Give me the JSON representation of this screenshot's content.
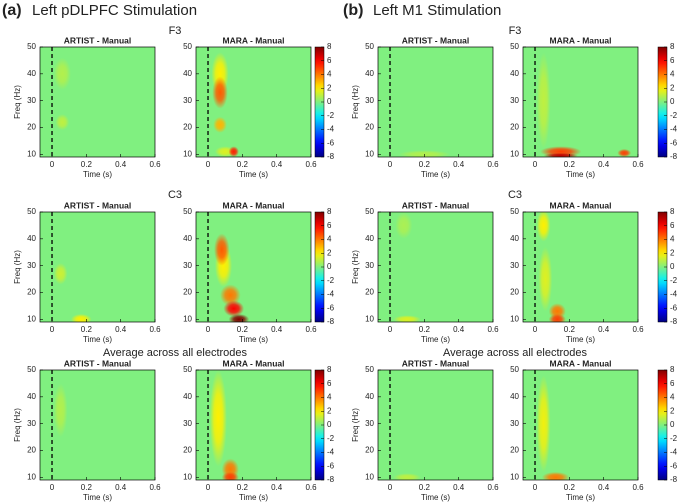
{
  "figure": {
    "panels": [
      {
        "label": "(a)",
        "title": "Left pDLPFC Stimulation",
        "rows": [
          "F3",
          "C3",
          "Average across all electrodes"
        ]
      },
      {
        "label": "(b)",
        "title": "Left M1 Stimulation",
        "rows": [
          "F3",
          "C3",
          "Average across all electrodes"
        ]
      }
    ]
  },
  "chart_data": [
    {
      "type": "heatmap",
      "title": "ARTIST - Manual",
      "xlabel": "Time (s)",
      "ylabel": "Freq (Hz)",
      "xlim": [
        -0.07,
        0.6
      ],
      "xticks": [
        0,
        0.2,
        0.4,
        0.6
      ],
      "ylim": [
        9,
        50
      ],
      "yticks": [
        10,
        20,
        30,
        40,
        50
      ],
      "clim": [
        -8,
        8
      ],
      "colormap": "jet",
      "spots": [
        {
          "t": 0.06,
          "f": 40,
          "dt": 0.05,
          "df": 6,
          "value": 0.8
        },
        {
          "t": 0.06,
          "f": 22,
          "dt": 0.04,
          "df": 3,
          "value": 1
        }
      ]
    },
    {
      "type": "heatmap",
      "title": "MARA - Manual",
      "xlabel": "Time (s)",
      "xlim": [
        -0.07,
        0.6
      ],
      "xticks": [
        0,
        0.2,
        0.4,
        0.6
      ],
      "ylim": [
        9,
        50
      ],
      "yticks": [
        10,
        20,
        30,
        40,
        50
      ],
      "clim": [
        -8,
        8
      ],
      "cticks": [
        8,
        6,
        4,
        2,
        0,
        -2,
        -4,
        -6,
        -8
      ],
      "colormap": "jet",
      "spots": [
        {
          "t": 0.07,
          "f": 40,
          "dt": 0.05,
          "df": 8,
          "value": 2
        },
        {
          "t": 0.07,
          "f": 33,
          "dt": 0.045,
          "df": 6,
          "value": 4.5
        },
        {
          "t": 0.07,
          "f": 21,
          "dt": 0.04,
          "df": 3,
          "value": 3
        },
        {
          "t": 0.1,
          "f": 11,
          "dt": 0.06,
          "df": 2,
          "value": 1.5
        },
        {
          "t": 0.15,
          "f": 11,
          "dt": 0.03,
          "df": 2,
          "value": 5.5
        }
      ]
    },
    {
      "type": "heatmap",
      "title": "ARTIST - Manual",
      "xlabel": "Time (s)",
      "ylabel": "Freq (Hz)",
      "xlim": [
        -0.07,
        0.6
      ],
      "xticks": [
        0,
        0.2,
        0.4,
        0.6
      ],
      "ylim": [
        9,
        50
      ],
      "yticks": [
        10,
        20,
        30,
        40,
        50
      ],
      "clim": [
        -8,
        8
      ],
      "colormap": "jet",
      "spots": [
        {
          "t": 0.05,
          "f": 27,
          "dt": 0.04,
          "df": 4,
          "value": 1.2
        },
        {
          "t": 0.17,
          "f": 10,
          "dt": 0.06,
          "df": 2,
          "value": 2
        }
      ]
    },
    {
      "type": "heatmap",
      "title": "MARA - Manual",
      "xlabel": "Time (s)",
      "xlim": [
        -0.07,
        0.6
      ],
      "xticks": [
        0,
        0.2,
        0.4,
        0.6
      ],
      "ylim": [
        9,
        50
      ],
      "yticks": [
        10,
        20,
        30,
        40,
        50
      ],
      "clim": [
        -8,
        8
      ],
      "cticks": [
        8,
        6,
        4,
        2,
        0,
        -2,
        -4,
        -6,
        -8
      ],
      "colormap": "jet",
      "spots": [
        {
          "t": 0.09,
          "f": 30,
          "dt": 0.05,
          "df": 8,
          "value": 2
        },
        {
          "t": 0.08,
          "f": 36,
          "dt": 0.045,
          "df": 6,
          "value": 4.5
        },
        {
          "t": 0.13,
          "f": 19,
          "dt": 0.06,
          "df": 4,
          "value": 4
        },
        {
          "t": 0.15,
          "f": 14,
          "dt": 0.06,
          "df": 3,
          "value": 6
        },
        {
          "t": 0.18,
          "f": 10,
          "dt": 0.06,
          "df": 2,
          "value": 8
        }
      ]
    },
    {
      "type": "heatmap",
      "title": "ARTIST - Manual",
      "xlabel": "Time (s)",
      "ylabel": "Freq (Hz)",
      "xlim": [
        -0.07,
        0.6
      ],
      "xticks": [
        0,
        0.2,
        0.4,
        0.6
      ],
      "ylim": [
        9,
        50
      ],
      "yticks": [
        10,
        20,
        30,
        40,
        50
      ],
      "clim": [
        -8,
        8
      ],
      "colormap": "jet",
      "spots": [
        {
          "t": 0.05,
          "f": 35,
          "dt": 0.04,
          "df": 10,
          "value": 0.8
        }
      ]
    },
    {
      "type": "heatmap",
      "title": "MARA - Manual",
      "xlabel": "Time (s)",
      "xlim": [
        -0.07,
        0.6
      ],
      "xticks": [
        0,
        0.2,
        0.4,
        0.6
      ],
      "ylim": [
        9,
        50
      ],
      "yticks": [
        10,
        20,
        30,
        40,
        50
      ],
      "clim": [
        -8,
        8
      ],
      "cticks": [
        8,
        6,
        4,
        2,
        0,
        -2,
        -4,
        -6,
        -8
      ],
      "colormap": "jet",
      "spots": [
        {
          "t": 0.06,
          "f": 32,
          "dt": 0.05,
          "df": 18,
          "value": 2
        },
        {
          "t": 0.13,
          "f": 13,
          "dt": 0.05,
          "df": 4,
          "value": 4
        },
        {
          "t": 0.13,
          "f": 10,
          "dt": 0.05,
          "df": 2,
          "value": 5
        }
      ]
    },
    {
      "type": "heatmap",
      "title": "ARTIST - Manual",
      "xlabel": "Time (s)",
      "ylabel": "Freq (Hz)",
      "xlim": [
        -0.07,
        0.6
      ],
      "xticks": [
        0,
        0.2,
        0.4,
        0.6
      ],
      "ylim": [
        9,
        50
      ],
      "yticks": [
        10,
        20,
        30,
        40,
        50
      ],
      "clim": [
        -8,
        8
      ],
      "colormap": "jet",
      "spots": [
        {
          "t": 0.2,
          "f": 10,
          "dt": 0.15,
          "df": 1.5,
          "value": 0.8
        }
      ]
    },
    {
      "type": "heatmap",
      "title": "MARA - Manual",
      "xlabel": "Time (s)",
      "xlim": [
        -0.07,
        0.6
      ],
      "xticks": [
        0,
        0.2,
        0.4,
        0.6
      ],
      "ylim": [
        9,
        50
      ],
      "yticks": [
        10,
        20,
        30,
        40,
        50
      ],
      "clim": [
        -8,
        8
      ],
      "cticks": [
        8,
        6,
        4,
        2,
        0,
        -2,
        -4,
        -6,
        -8
      ],
      "colormap": "jet",
      "spots": [
        {
          "t": 0.05,
          "f": 30,
          "dt": 0.04,
          "df": 18,
          "value": 1
        },
        {
          "t": 0.15,
          "f": 11,
          "dt": 0.12,
          "df": 2,
          "value": 5
        },
        {
          "t": 0.15,
          "f": 9.5,
          "dt": 0.1,
          "df": 1,
          "value": 7
        },
        {
          "t": 0.52,
          "f": 10.5,
          "dt": 0.04,
          "df": 1.5,
          "value": 5
        }
      ]
    },
    {
      "type": "heatmap",
      "title": "ARTIST - Manual",
      "xlabel": "Time (s)",
      "ylabel": "Freq (Hz)",
      "xlim": [
        -0.07,
        0.6
      ],
      "xticks": [
        0,
        0.2,
        0.4,
        0.6
      ],
      "ylim": [
        9,
        50
      ],
      "yticks": [
        10,
        20,
        30,
        40,
        50
      ],
      "clim": [
        -8,
        8
      ],
      "colormap": "jet",
      "spots": [
        {
          "t": 0.1,
          "f": 10,
          "dt": 0.08,
          "df": 1.5,
          "value": 1.5
        },
        {
          "t": 0.08,
          "f": 45,
          "dt": 0.05,
          "df": 5,
          "value": 0.7
        }
      ]
    },
    {
      "type": "heatmap",
      "title": "MARA - Manual",
      "xlabel": "Time (s)",
      "xlim": [
        -0.07,
        0.6
      ],
      "xticks": [
        0,
        0.2,
        0.4,
        0.6
      ],
      "ylim": [
        9,
        50
      ],
      "yticks": [
        10,
        20,
        30,
        40,
        50
      ],
      "clim": [
        -8,
        8
      ],
      "cticks": [
        8,
        6,
        4,
        2,
        0,
        -2,
        -4,
        -6,
        -8
      ],
      "colormap": "jet",
      "spots": [
        {
          "t": 0.05,
          "f": 45,
          "dt": 0.04,
          "df": 6,
          "value": 2
        },
        {
          "t": 0.06,
          "f": 25,
          "dt": 0.04,
          "df": 12,
          "value": 1.5
        },
        {
          "t": 0.13,
          "f": 13,
          "dt": 0.05,
          "df": 3,
          "value": 4
        },
        {
          "t": 0.13,
          "f": 10,
          "dt": 0.05,
          "df": 2,
          "value": 5
        }
      ]
    },
    {
      "type": "heatmap",
      "title": "ARTIST - Manual",
      "xlabel": "Time (s)",
      "ylabel": "Freq (Hz)",
      "xlim": [
        -0.07,
        0.6
      ],
      "xticks": [
        0,
        0.2,
        0.4,
        0.6
      ],
      "ylim": [
        9,
        50
      ],
      "yticks": [
        10,
        20,
        30,
        40,
        50
      ],
      "clim": [
        -8,
        8
      ],
      "colormap": "jet",
      "spots": [
        {
          "t": 0.1,
          "f": 10,
          "dt": 0.08,
          "df": 1.5,
          "value": 1
        }
      ]
    },
    {
      "type": "heatmap",
      "title": "MARA - Manual",
      "xlabel": "Time (s)",
      "xlim": [
        -0.07,
        0.6
      ],
      "xticks": [
        0,
        0.2,
        0.4,
        0.6
      ],
      "ylim": [
        9,
        50
      ],
      "yticks": [
        10,
        20,
        30,
        40,
        50
      ],
      "clim": [
        -8,
        8
      ],
      "cticks": [
        8,
        6,
        4,
        2,
        0,
        -2,
        -4,
        -6,
        -8
      ],
      "colormap": "jet",
      "spots": [
        {
          "t": 0.05,
          "f": 30,
          "dt": 0.04,
          "df": 18,
          "value": 1.8
        },
        {
          "t": 0.12,
          "f": 10,
          "dt": 0.08,
          "df": 2,
          "value": 4
        }
      ]
    }
  ]
}
